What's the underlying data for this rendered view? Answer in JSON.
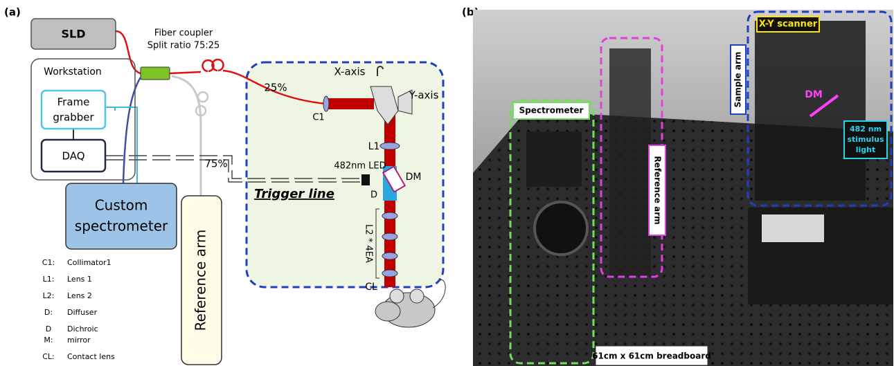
{
  "panel_a": {
    "label": "(a)",
    "sld": "SLD",
    "fiber_coupler": [
      "Fiber coupler",
      "Split ratio 75:25"
    ],
    "workstation": "Workstation",
    "frame_grabber": [
      "Frame",
      "grabber"
    ],
    "daq": "DAQ",
    "split_25": "25%",
    "split_75": "75%",
    "x_axis": "X-axis",
    "y_axis": "Y-axis",
    "c1": "C1",
    "l1": "L1",
    "led": "482nm LED",
    "dm": "DM",
    "d": "D",
    "trigger_line": "Trigger line",
    "l2": "L2 * 4EA",
    "cl": "CL",
    "spectrometer": [
      "Custom",
      "spectrometer"
    ],
    "reference_arm": "Reference arm",
    "legend": [
      {
        "abbr": [
          "C1:"
        ],
        "desc": [
          "Collimator1"
        ]
      },
      {
        "abbr": [
          "L1:"
        ],
        "desc": [
          "Lens 1"
        ]
      },
      {
        "abbr": [
          "L2:"
        ],
        "desc": [
          "Lens 2"
        ]
      },
      {
        "abbr": [
          "D:"
        ],
        "desc": [
          "Diffuser"
        ]
      },
      {
        "abbr": [
          "D",
          "M:"
        ],
        "desc": [
          "Dichroic",
          "mirror"
        ]
      },
      {
        "abbr": [
          "CL:"
        ],
        "desc": [
          "Contact lens"
        ]
      }
    ]
  },
  "panel_b": {
    "label": "(b)",
    "xy_scanner": "X-Y scanner",
    "dm": "DM",
    "sample_arm": "Sample arm",
    "spectrometer": "Spectrometer",
    "reference_arm": "Reference arm",
    "stimulus": [
      "482 nm",
      "stimulus",
      "light"
    ],
    "breadboard": "61cm x 61cm breadboard"
  }
}
